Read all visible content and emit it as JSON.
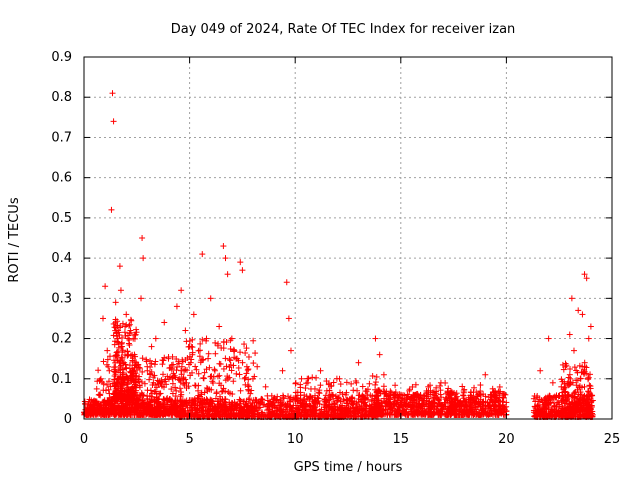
{
  "chart_data": {
    "type": "scatter",
    "title": "Day 049 of 2024, Rate Of TEC Index for receiver izan",
    "xlabel": "GPS time / hours",
    "ylabel": "ROTI / TECUs",
    "xlim": [
      0,
      25
    ],
    "ylim": [
      0,
      0.9
    ],
    "xticks": [
      0,
      5,
      10,
      15,
      20,
      25
    ],
    "xtick_labels": [
      "0",
      "5",
      "10",
      "15",
      "20",
      "25"
    ],
    "yticks": [
      0,
      0.1,
      0.2,
      0.3,
      0.4,
      0.5,
      0.6,
      0.7,
      0.8,
      0.9
    ],
    "ytick_labels": [
      "0",
      "0.1",
      "0.2",
      "0.3",
      "0.4",
      "0.5",
      "0.6",
      "0.7",
      "0.8",
      "0.9"
    ],
    "grid": true,
    "marker": "plus",
    "color": "#ff0000",
    "series": [
      {
        "name": "ROTI",
        "points": [
          [
            0.1,
            0.01
          ],
          [
            0.3,
            0.02
          ],
          [
            0.5,
            0.03
          ],
          [
            0.7,
            0.06
          ],
          [
            0.8,
            0.1
          ],
          [
            0.9,
            0.25
          ],
          [
            1.0,
            0.33
          ],
          [
            1.1,
            0.17
          ],
          [
            1.2,
            0.12
          ],
          [
            1.3,
            0.52
          ],
          [
            1.35,
            0.81
          ],
          [
            1.4,
            0.74
          ],
          [
            1.5,
            0.29
          ],
          [
            1.6,
            0.2
          ],
          [
            1.7,
            0.38
          ],
          [
            1.75,
            0.32
          ],
          [
            1.8,
            0.18
          ],
          [
            1.9,
            0.14
          ],
          [
            2.0,
            0.26
          ],
          [
            2.1,
            0.16
          ],
          [
            2.2,
            0.22
          ],
          [
            2.3,
            0.1
          ],
          [
            2.4,
            0.08
          ],
          [
            2.5,
            0.06
          ],
          [
            2.7,
            0.3
          ],
          [
            2.75,
            0.45
          ],
          [
            2.8,
            0.4
          ],
          [
            3.0,
            0.12
          ],
          [
            3.2,
            0.18
          ],
          [
            3.4,
            0.2
          ],
          [
            3.6,
            0.09
          ],
          [
            3.8,
            0.24
          ],
          [
            4.0,
            0.15
          ],
          [
            4.2,
            0.1
          ],
          [
            4.4,
            0.28
          ],
          [
            4.6,
            0.32
          ],
          [
            4.8,
            0.22
          ],
          [
            5.0,
            0.18
          ],
          [
            5.2,
            0.26
          ],
          [
            5.4,
            0.07
          ],
          [
            5.6,
            0.41
          ],
          [
            5.8,
            0.2
          ],
          [
            6.0,
            0.3
          ],
          [
            6.2,
            0.12
          ],
          [
            6.4,
            0.23
          ],
          [
            6.6,
            0.43
          ],
          [
            6.7,
            0.4
          ],
          [
            6.8,
            0.36
          ],
          [
            7.0,
            0.2
          ],
          [
            7.2,
            0.15
          ],
          [
            7.4,
            0.39
          ],
          [
            7.5,
            0.37
          ],
          [
            7.6,
            0.1
          ],
          [
            7.8,
            0.07
          ],
          [
            8.0,
            0.1
          ],
          [
            8.2,
            0.13
          ],
          [
            8.4,
            0.05
          ],
          [
            8.6,
            0.08
          ],
          [
            8.8,
            0.03
          ],
          [
            9.0,
            0.05
          ],
          [
            9.2,
            0.04
          ],
          [
            9.4,
            0.12
          ],
          [
            9.6,
            0.34
          ],
          [
            9.7,
            0.25
          ],
          [
            9.8,
            0.17
          ],
          [
            10.0,
            0.05
          ],
          [
            10.3,
            0.1
          ],
          [
            10.6,
            0.09
          ],
          [
            10.9,
            0.04
          ],
          [
            11.2,
            0.12
          ],
          [
            11.5,
            0.07
          ],
          [
            11.8,
            0.05
          ],
          [
            12.1,
            0.1
          ],
          [
            12.4,
            0.06
          ],
          [
            12.7,
            0.04
          ],
          [
            13.0,
            0.14
          ],
          [
            13.3,
            0.05
          ],
          [
            13.6,
            0.03
          ],
          [
            13.8,
            0.2
          ],
          [
            14.0,
            0.16
          ],
          [
            14.2,
            0.11
          ],
          [
            14.5,
            0.06
          ],
          [
            14.8,
            0.04
          ],
          [
            15.1,
            0.05
          ],
          [
            15.4,
            0.07
          ],
          [
            15.7,
            0.06
          ],
          [
            16.0,
            0.05
          ],
          [
            16.3,
            0.08
          ],
          [
            16.6,
            0.04
          ],
          [
            16.9,
            0.09
          ],
          [
            17.2,
            0.05
          ],
          [
            17.5,
            0.03
          ],
          [
            17.8,
            0.04
          ],
          [
            18.1,
            0.03
          ],
          [
            18.4,
            0.05
          ],
          [
            18.7,
            0.04
          ],
          [
            19.0,
            0.11
          ],
          [
            19.3,
            0.06
          ],
          [
            19.6,
            0.03
          ],
          [
            20.0,
            0.02
          ],
          [
            21.4,
            0.02
          ],
          [
            21.6,
            0.12
          ],
          [
            21.8,
            0.05
          ],
          [
            22.0,
            0.2
          ],
          [
            22.2,
            0.09
          ],
          [
            22.4,
            0.04
          ],
          [
            22.6,
            0.08
          ],
          [
            22.8,
            0.13
          ],
          [
            23.0,
            0.21
          ],
          [
            23.1,
            0.3
          ],
          [
            23.2,
            0.17
          ],
          [
            23.4,
            0.27
          ],
          [
            23.5,
            0.1
          ],
          [
            23.6,
            0.26
          ],
          [
            23.7,
            0.36
          ],
          [
            23.8,
            0.35
          ],
          [
            23.9,
            0.2
          ],
          [
            24.0,
            0.23
          ],
          [
            24.05,
            0.03
          ]
        ],
        "bands": [
          [
            0.0,
            4.5,
            0.01,
            0.05,
            520
          ],
          [
            0.6,
            4.8,
            0.02,
            0.16,
            380
          ],
          [
            1.4,
            2.5,
            0.05,
            0.25,
            260
          ],
          [
            4.5,
            8.5,
            0.005,
            0.05,
            380
          ],
          [
            4.6,
            8.2,
            0.02,
            0.2,
            240
          ],
          [
            8.5,
            10.0,
            0.005,
            0.06,
            160
          ],
          [
            10.0,
            14.0,
            0.005,
            0.06,
            380
          ],
          [
            10.0,
            14.0,
            0.02,
            0.11,
            140
          ],
          [
            13.6,
            20.0,
            0.01,
            0.07,
            720
          ],
          [
            13.6,
            20.0,
            0.03,
            0.09,
            160
          ],
          [
            21.3,
            24.1,
            0.005,
            0.06,
            380
          ],
          [
            22.6,
            24.0,
            0.02,
            0.14,
            160
          ]
        ]
      }
    ]
  }
}
